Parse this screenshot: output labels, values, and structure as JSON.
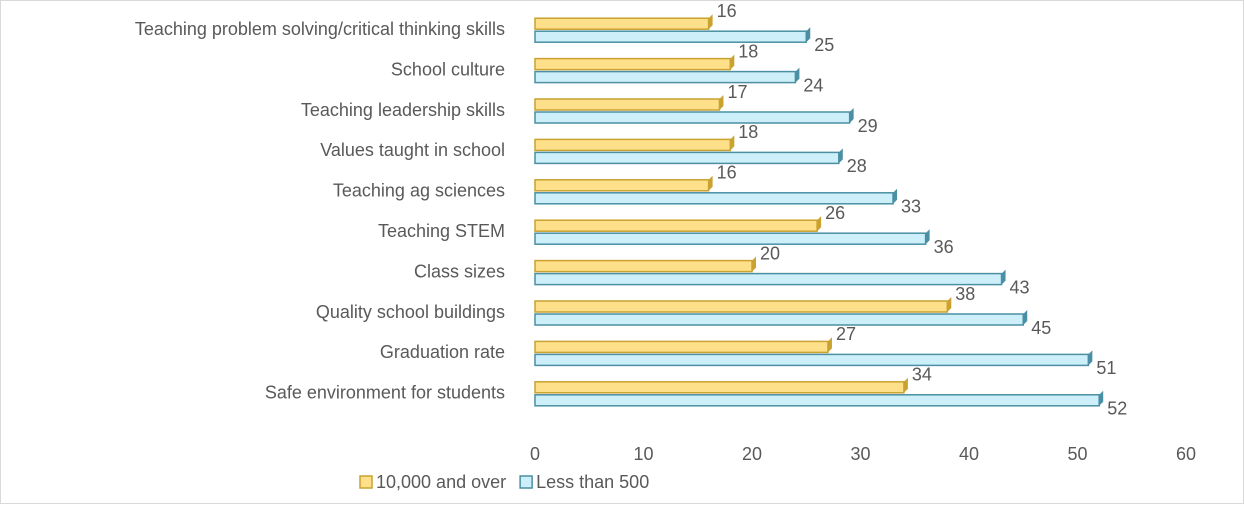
{
  "chart_data": {
    "type": "hbar",
    "categories": [
      "Teaching problem solving/critical thinking skills",
      "School culture",
      "Teaching leadership skills",
      "Values taught in school",
      "Teaching ag sciences",
      "Teaching STEM",
      "Class sizes",
      "Quality school buildings",
      "Graduation rate",
      "Safe environment for students"
    ],
    "series": [
      {
        "name": "10,000 and over",
        "color": "#FFE08A",
        "edge": "#C9A230",
        "values": [
          16,
          18,
          17,
          18,
          16,
          26,
          20,
          38,
          27,
          34
        ]
      },
      {
        "name": "Less than 500",
        "color": "#CDEFF9",
        "edge": "#4A8FA3",
        "values": [
          25,
          24,
          29,
          28,
          33,
          36,
          43,
          45,
          51,
          52
        ]
      }
    ],
    "xlim": [
      0,
      60
    ],
    "xticks": [
      0,
      10,
      20,
      30,
      40,
      50,
      60
    ],
    "grid": false,
    "legend": "bottom"
  }
}
